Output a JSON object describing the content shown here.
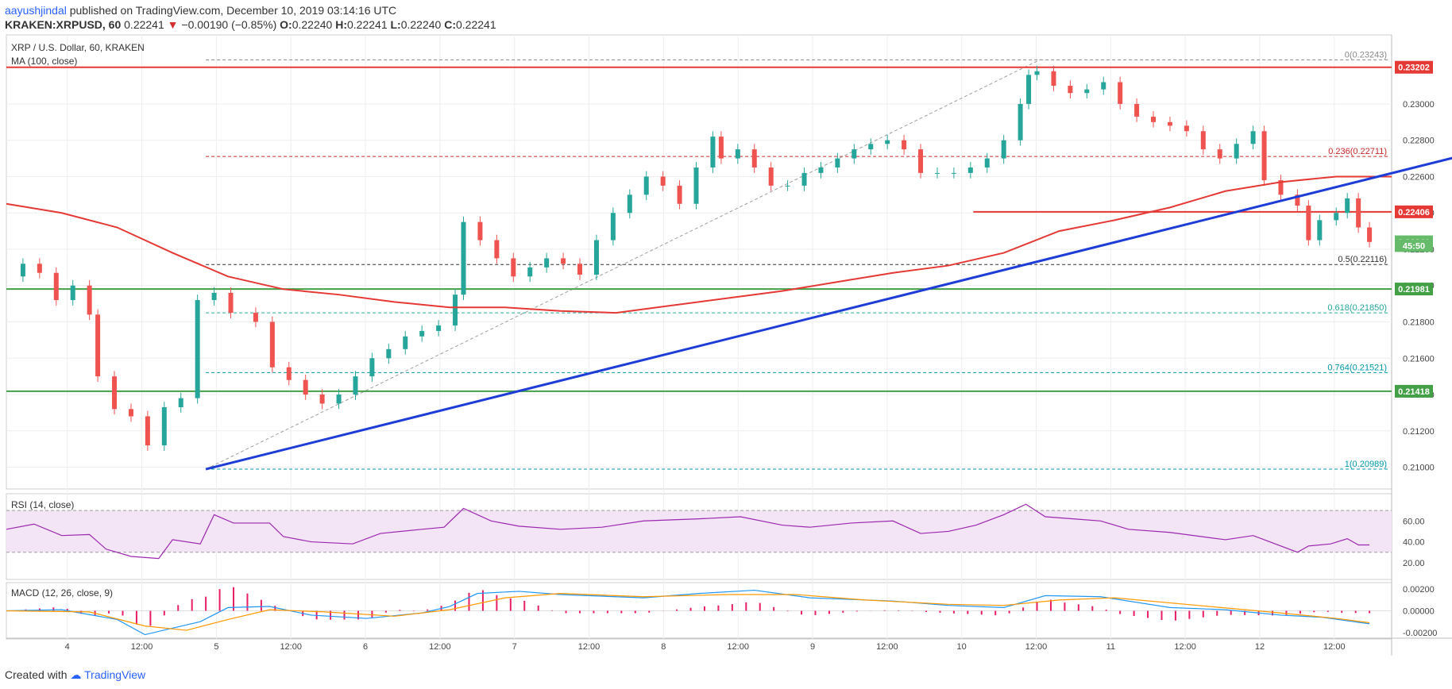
{
  "header": {
    "author": "aayushjindal",
    "published_text": "published on TradingView.com, December 10, 2019 03:14:16 UTC",
    "symbol": "KRAKEN:XRPUSD, 60",
    "last": "0.22241",
    "change": "−0.00190 (−0.85%)",
    "o_label": "O:",
    "o": "0.22240",
    "h_label": "H:",
    "h": "0.22241",
    "l_label": "L:",
    "l": "0.22240",
    "c_label": "C:",
    "c": "0.22241"
  },
  "footer": {
    "created_with": "Created with",
    "brand": "TradingView"
  },
  "colors": {
    "up": "#26a69a",
    "down": "#ef5350",
    "ma": "#e53935",
    "trend": "#1e3cd6",
    "resistance": "#e53935",
    "support": "#43a047",
    "rsi": "#9c27b0",
    "macd": "#2196f3",
    "signal": "#ff9800",
    "hist": "#e91e63",
    "arrow": "#e53935"
  },
  "chart_data": {
    "type": "line",
    "title": "XRP / U.S. Dollar, 60, KRAKEN",
    "indicator": "MA (100, close)",
    "x_ticks": [
      "4",
      "12:00",
      "5",
      "12:00",
      "6",
      "12:00",
      "7",
      "12:00",
      "8",
      "12:00",
      "9",
      "12:00",
      "10",
      "12:00",
      "11",
      "12:00",
      "12",
      "12:00"
    ],
    "y_ticks": [
      "0.23000",
      "0.22800",
      "0.22600",
      "0.22400",
      "0.22200",
      "0.22000",
      "0.21800",
      "0.21600",
      "0.21400",
      "0.21200",
      "0.21000"
    ],
    "y_range": [
      0.2088,
      0.2338
    ],
    "price_tags": [
      {
        "value": 0.23202,
        "label": "0.23202",
        "kind": "resistance"
      },
      {
        "value": 0.22406,
        "label": "0.22406",
        "kind": "resistance"
      },
      {
        "value": 0.22241,
        "label": "0.22241",
        "kind": "last"
      },
      {
        "value": 0.2222,
        "label": "45:50",
        "kind": "timer"
      },
      {
        "value": 0.21981,
        "label": "0.21981",
        "kind": "support"
      },
      {
        "value": 0.21418,
        "label": "0.21418",
        "kind": "support"
      }
    ],
    "fib_levels": [
      {
        "ratio": "0",
        "value": 0.23243,
        "label": "0(0.23243)"
      },
      {
        "ratio": "0.236",
        "value": 0.22711,
        "label": "0.236(0.22711)"
      },
      {
        "ratio": "0.5",
        "value": 0.22116,
        "label": "0.5(0.22116)"
      },
      {
        "ratio": "0.618",
        "value": 0.2185,
        "label": "0.618(0.21850)"
      },
      {
        "ratio": "0.764",
        "value": 0.21521,
        "label": "0.764(0.21521)"
      },
      {
        "ratio": "1",
        "value": 0.20989,
        "label": "1(0.20989)"
      }
    ],
    "price_series": [
      [
        0,
        0.2205
      ],
      [
        6,
        0.2212
      ],
      [
        12,
        0.2207
      ],
      [
        18,
        0.2192
      ],
      [
        24,
        0.22
      ],
      [
        30,
        0.2184
      ],
      [
        33,
        0.215
      ],
      [
        39,
        0.2132
      ],
      [
        45,
        0.2128
      ],
      [
        51,
        0.2112
      ],
      [
        57,
        0.2133
      ],
      [
        63,
        0.2138
      ],
      [
        69,
        0.2192
      ],
      [
        75,
        0.2196
      ],
      [
        81,
        0.2185
      ],
      [
        90,
        0.218
      ],
      [
        96,
        0.2155
      ],
      [
        102,
        0.2148
      ],
      [
        108,
        0.214
      ],
      [
        114,
        0.2135
      ],
      [
        120,
        0.214
      ],
      [
        126,
        0.215
      ],
      [
        132,
        0.216
      ],
      [
        138,
        0.2165
      ],
      [
        144,
        0.2172
      ],
      [
        150,
        0.2175
      ],
      [
        156,
        0.2178
      ],
      [
        162,
        0.2195
      ],
      [
        165,
        0.2235
      ],
      [
        171,
        0.2225
      ],
      [
        177,
        0.2215
      ],
      [
        183,
        0.2205
      ],
      [
        189,
        0.221
      ],
      [
        195,
        0.2215
      ],
      [
        201,
        0.2212
      ],
      [
        207,
        0.2206
      ],
      [
        213,
        0.2225
      ],
      [
        219,
        0.224
      ],
      [
        225,
        0.225
      ],
      [
        231,
        0.226
      ],
      [
        237,
        0.2255
      ],
      [
        243,
        0.2245
      ],
      [
        249,
        0.2265
      ],
      [
        255,
        0.2282
      ],
      [
        258,
        0.227
      ],
      [
        264,
        0.2275
      ],
      [
        270,
        0.2265
      ],
      [
        276,
        0.2255
      ],
      [
        282,
        0.2255
      ],
      [
        288,
        0.2262
      ],
      [
        294,
        0.2265
      ],
      [
        300,
        0.227
      ],
      [
        306,
        0.2275
      ],
      [
        312,
        0.2278
      ],
      [
        318,
        0.228
      ],
      [
        324,
        0.2275
      ],
      [
        330,
        0.2262
      ],
      [
        336,
        0.2262
      ],
      [
        342,
        0.2262
      ],
      [
        348,
        0.2265
      ],
      [
        354,
        0.227
      ],
      [
        360,
        0.228
      ],
      [
        366,
        0.23
      ],
      [
        369,
        0.2316
      ],
      [
        372,
        0.2318
      ],
      [
        378,
        0.231
      ],
      [
        384,
        0.2306
      ],
      [
        390,
        0.2308
      ],
      [
        396,
        0.2312
      ],
      [
        402,
        0.23
      ],
      [
        408,
        0.2293
      ],
      [
        414,
        0.229
      ],
      [
        420,
        0.2288
      ],
      [
        426,
        0.2285
      ],
      [
        432,
        0.2275
      ],
      [
        438,
        0.227
      ],
      [
        444,
        0.2278
      ],
      [
        450,
        0.2285
      ],
      [
        454,
        0.2258
      ],
      [
        460,
        0.225
      ],
      [
        466,
        0.2244
      ],
      [
        470,
        0.2225
      ],
      [
        474,
        0.2236
      ],
      [
        480,
        0.224
      ],
      [
        484,
        0.2248
      ],
      [
        488,
        0.2232
      ],
      [
        492,
        0.2224
      ]
    ],
    "ma_series": [
      [
        0,
        0.2245
      ],
      [
        20,
        0.224
      ],
      [
        40,
        0.2232
      ],
      [
        60,
        0.2218
      ],
      [
        80,
        0.2205
      ],
      [
        100,
        0.2198
      ],
      [
        120,
        0.2195
      ],
      [
        140,
        0.2191
      ],
      [
        160,
        0.2188
      ],
      [
        180,
        0.2188
      ],
      [
        200,
        0.2186
      ],
      [
        220,
        0.2185
      ],
      [
        240,
        0.2189
      ],
      [
        260,
        0.2193
      ],
      [
        280,
        0.2197
      ],
      [
        300,
        0.2202
      ],
      [
        320,
        0.2207
      ],
      [
        340,
        0.2211
      ],
      [
        360,
        0.2218
      ],
      [
        380,
        0.223
      ],
      [
        400,
        0.2236
      ],
      [
        420,
        0.2243
      ],
      [
        440,
        0.2252
      ],
      [
        460,
        0.2257
      ],
      [
        480,
        0.226
      ],
      [
        500,
        0.226
      ]
    ],
    "rsi": {
      "title": "RSI (14, close)",
      "y_ticks": [
        "60.00",
        "40.00",
        "20.00"
      ],
      "values": [
        [
          0,
          52
        ],
        [
          10,
          57
        ],
        [
          20,
          46
        ],
        [
          30,
          47
        ],
        [
          36,
          33
        ],
        [
          45,
          26
        ],
        [
          55,
          24
        ],
        [
          60,
          42
        ],
        [
          70,
          38
        ],
        [
          75,
          66
        ],
        [
          82,
          58
        ],
        [
          95,
          58
        ],
        [
          100,
          45
        ],
        [
          110,
          40
        ],
        [
          125,
          38
        ],
        [
          135,
          48
        ],
        [
          150,
          52
        ],
        [
          158,
          54
        ],
        [
          165,
          72
        ],
        [
          175,
          60
        ],
        [
          185,
          55
        ],
        [
          200,
          52
        ],
        [
          215,
          54
        ],
        [
          230,
          60
        ],
        [
          250,
          62
        ],
        [
          265,
          64
        ],
        [
          280,
          56
        ],
        [
          290,
          54
        ],
        [
          305,
          58
        ],
        [
          320,
          60
        ],
        [
          330,
          48
        ],
        [
          340,
          50
        ],
        [
          350,
          56
        ],
        [
          360,
          66
        ],
        [
          368,
          76
        ],
        [
          375,
          64
        ],
        [
          385,
          62
        ],
        [
          395,
          60
        ],
        [
          405,
          52
        ],
        [
          420,
          49
        ],
        [
          440,
          42
        ],
        [
          450,
          46
        ],
        [
          456,
          40
        ],
        [
          466,
          30
        ],
        [
          470,
          36
        ],
        [
          478,
          38
        ],
        [
          484,
          43
        ],
        [
          488,
          37
        ],
        [
          492,
          37
        ]
      ]
    },
    "macd": {
      "title": "MACD (12, 26, close, 9)",
      "y_ticks": [
        "0.00200",
        "0.00000",
        "-0.00200"
      ],
      "macd_values": [
        [
          0,
          0.0
        ],
        [
          20,
          0.0001
        ],
        [
          40,
          -0.0008
        ],
        [
          50,
          -0.0022
        ],
        [
          60,
          -0.0016
        ],
        [
          70,
          -0.001
        ],
        [
          80,
          0.0003
        ],
        [
          95,
          0.0004
        ],
        [
          110,
          -0.0004
        ],
        [
          130,
          -0.0007
        ],
        [
          150,
          -0.0002
        ],
        [
          160,
          0.0004
        ],
        [
          170,
          0.0016
        ],
        [
          185,
          0.0018
        ],
        [
          200,
          0.0015
        ],
        [
          230,
          0.0012
        ],
        [
          250,
          0.0016
        ],
        [
          270,
          0.0019
        ],
        [
          290,
          0.0012
        ],
        [
          320,
          0.0009
        ],
        [
          340,
          0.0005
        ],
        [
          360,
          0.0003
        ],
        [
          375,
          0.0014
        ],
        [
          395,
          0.0013
        ],
        [
          420,
          0.0003
        ],
        [
          440,
          0.0001
        ],
        [
          460,
          -0.0004
        ],
        [
          475,
          -0.0006
        ],
        [
          492,
          -0.0012
        ]
      ],
      "signal_values": [
        [
          0,
          0.0
        ],
        [
          30,
          -0.0001
        ],
        [
          50,
          -0.0014
        ],
        [
          65,
          -0.0018
        ],
        [
          80,
          -0.0008
        ],
        [
          95,
          0.0001
        ],
        [
          115,
          -0.0001
        ],
        [
          140,
          -0.0005
        ],
        [
          160,
          0.0001
        ],
        [
          180,
          0.0012
        ],
        [
          200,
          0.0016
        ],
        [
          230,
          0.0013
        ],
        [
          260,
          0.0015
        ],
        [
          285,
          0.0015
        ],
        [
          310,
          0.001
        ],
        [
          340,
          0.0006
        ],
        [
          360,
          0.0005
        ],
        [
          380,
          0.001
        ],
        [
          400,
          0.0012
        ],
        [
          430,
          0.0005
        ],
        [
          460,
          -0.0002
        ],
        [
          480,
          -0.0007
        ],
        [
          492,
          -0.0011
        ]
      ]
    }
  }
}
